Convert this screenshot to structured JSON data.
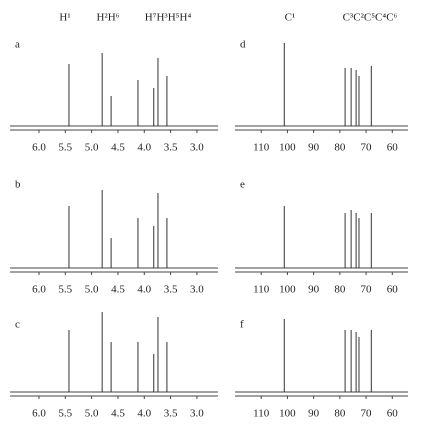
{
  "chart_data": [
    {
      "type": "spectrum",
      "label": "a",
      "annotations": [
        "H¹",
        "H²H⁶",
        "H⁷H³H⁵H⁴"
      ],
      "x": [
        5.43,
        4.8,
        4.63,
        4.12,
        3.82,
        3.74,
        3.57
      ],
      "values": [
        0.62,
        0.73,
        0.3,
        0.46,
        0.38,
        0.68,
        0.5
      ],
      "xlim": [
        6.55,
        2.6
      ],
      "ylim": [
        0,
        1
      ],
      "xticks": [
        {
          "value": 6,
          "label": "6.0"
        },
        5.5,
        {
          "value": 5,
          "label": "5.0"
        },
        4.5,
        {
          "value": 4,
          "label": "4.0"
        },
        3.5,
        {
          "value": 3,
          "label": "3.0"
        }
      ]
    },
    {
      "type": "spectrum",
      "label": "b",
      "x": [
        5.43,
        4.8,
        4.63,
        4.12,
        3.82,
        3.74,
        3.57
      ],
      "values": [
        0.62,
        0.78,
        0.3,
        0.5,
        0.42,
        0.75,
        0.5
      ],
      "xlim": [
        6.55,
        2.6
      ],
      "ylim": [
        0,
        1
      ],
      "xticks": [
        {
          "value": 6,
          "label": "6.0"
        },
        5.5,
        {
          "value": 5,
          "label": "5.0"
        },
        4.5,
        {
          "value": 4,
          "label": "4.0"
        },
        3.5,
        {
          "value": 3,
          "label": "3.0"
        }
      ]
    },
    {
      "type": "spectrum",
      "label": "c",
      "x": [
        5.43,
        4.8,
        4.63,
        4.12,
        3.82,
        3.74,
        3.57
      ],
      "values": [
        0.62,
        0.8,
        0.5,
        0.5,
        0.38,
        0.75,
        0.5
      ],
      "xlim": [
        6.55,
        2.6
      ],
      "ylim": [
        0,
        1
      ],
      "xticks": [
        {
          "value": 6,
          "label": "6.0"
        },
        5.5,
        {
          "value": 5,
          "label": "5.0"
        },
        4.5,
        {
          "value": 4,
          "label": "4.0"
        },
        3.5,
        {
          "value": 3,
          "label": "3.0"
        }
      ]
    },
    {
      "type": "spectrum",
      "label": "d",
      "annotations": [
        "C¹",
        "C³C²C⁵C⁴C⁶"
      ],
      "x": [
        101.2,
        78,
        75.7,
        73.8,
        72.7,
        68
      ],
      "values": [
        0.83,
        0.58,
        0.58,
        0.56,
        0.5,
        0.6
      ],
      "xlim": [
        120,
        54
      ],
      "ylim": [
        0,
        1
      ],
      "xticks": [
        110,
        100,
        90,
        80,
        70,
        60
      ]
    },
    {
      "type": "spectrum",
      "label": "e",
      "x": [
        101.2,
        78,
        75.7,
        73.8,
        72.7,
        68
      ],
      "values": [
        0.62,
        0.55,
        0.58,
        0.55,
        0.5,
        0.55
      ],
      "xlim": [
        120,
        54
      ],
      "ylim": [
        0,
        1
      ],
      "xticks": [
        110,
        100,
        90,
        80,
        70,
        60
      ]
    },
    {
      "type": "spectrum",
      "label": "f",
      "x": [
        101.2,
        78,
        75.7,
        73.8,
        72.7,
        68
      ],
      "values": [
        0.73,
        0.62,
        0.62,
        0.6,
        0.55,
        0.62
      ],
      "xlim": [
        120,
        54
      ],
      "ylim": [
        0,
        1
      ],
      "xticks": [
        110,
        100,
        90,
        80,
        70,
        60
      ]
    }
  ]
}
